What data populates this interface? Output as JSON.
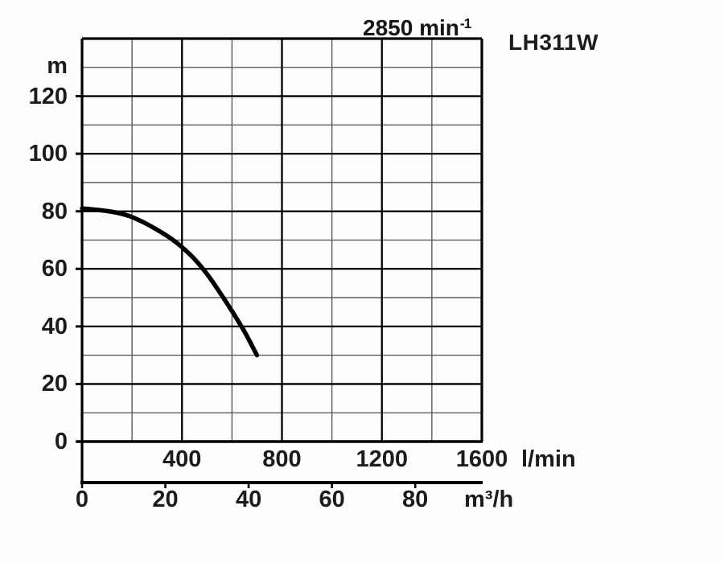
{
  "header": {
    "speed_label": {
      "text": "2850 min",
      "sup": "-1"
    },
    "model_label": "LH311W"
  },
  "chart_data": {
    "type": "line",
    "title": "2850 min⁻¹",
    "subtitle": "LH311W",
    "legend": "none",
    "grid": "on",
    "y_axis": {
      "label": "m",
      "ticks": [
        0,
        20,
        40,
        60,
        80,
        100,
        120
      ],
      "range": [
        0,
        140
      ],
      "grid_minor_step": 10,
      "grid_major_step": 20
    },
    "x_axis_primary": {
      "label": "l/min",
      "ticks": [
        400,
        800,
        1200,
        1600
      ],
      "range": [
        0,
        1600
      ],
      "grid_minor_step": 200,
      "grid_major_step": 400
    },
    "x_axis_secondary": {
      "label": "m³/h",
      "ticks": [
        0,
        20,
        40,
        60,
        80
      ],
      "lmin_per_m3h": 16.6667
    },
    "series": [
      {
        "name": "head-flow-curve",
        "units": [
          "l/min",
          "m"
        ],
        "points": [
          [
            0,
            81
          ],
          [
            50,
            80.6
          ],
          [
            100,
            80.1
          ],
          [
            150,
            79.3
          ],
          [
            200,
            78
          ],
          [
            250,
            76
          ],
          [
            300,
            73.6
          ],
          [
            350,
            70.9
          ],
          [
            400,
            67.5
          ],
          [
            450,
            63.4
          ],
          [
            500,
            58.2
          ],
          [
            550,
            52
          ],
          [
            600,
            45.3
          ],
          [
            650,
            38.2
          ],
          [
            700,
            30
          ]
        ]
      }
    ]
  },
  "colors": {
    "background": "#fefefe",
    "curve": "#000000",
    "grid_minor": "#4d4d4d",
    "grid_major": "#000000",
    "border": "#000000",
    "text": "#1c1c1c"
  }
}
